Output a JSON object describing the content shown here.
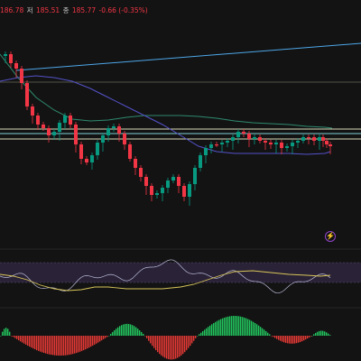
{
  "ohlc": {
    "high_value": "186.78",
    "low_label": "저",
    "low_value": "185.51",
    "close_label": "종",
    "close_value": "185.77",
    "change_text": "-0.66 (-0.35%)"
  },
  "alert_icon": "lightning-icon",
  "colors": {
    "background": "#131313",
    "up": "#089981",
    "down": "#f23645",
    "trendline": "#4ea7e8",
    "horizontal_level": "#d8d8b8",
    "ma_fast": "#2f8a6f",
    "ma_slow": "#5452c9",
    "rsi_line": "#b8b8d8",
    "rsi_signal": "#d8c65a",
    "rsi_band": "#2a2236",
    "macd_up": "#22c55e",
    "macd_down": "#e53935"
  }
}
